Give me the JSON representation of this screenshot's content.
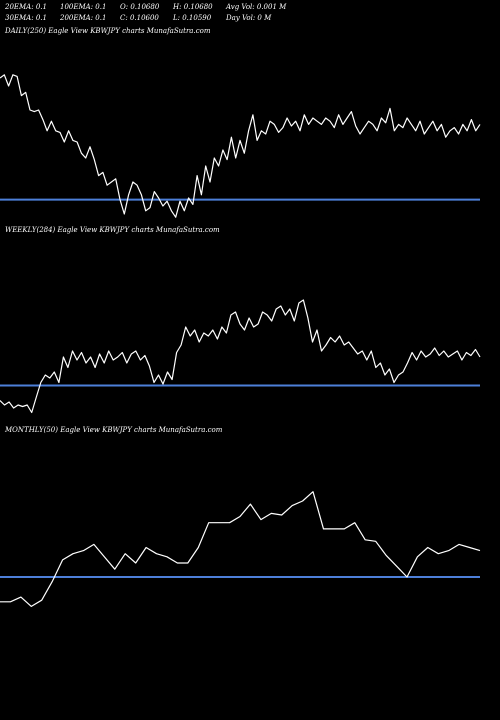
{
  "header": {
    "row1": [
      "20EMA: 0.1",
      "100EMA: 0.1",
      "O: 0.10680",
      "H: 0.10680",
      "Avg Vol: 0.001 M"
    ],
    "row2": [
      "30EMA: 0.1",
      "200EMA: 0.1",
      "C: 0.10600",
      "L: 0.10590",
      "Day Vol: 0  M"
    ]
  },
  "colors": {
    "background": "#000000",
    "line": "#ffffff",
    "support": "#4d7fd9"
  },
  "chart_data": [
    {
      "type": "line",
      "title": "DAILY(250) Eagle  View  KBWJPY charts MunafaSutra.com",
      "support_level": 0.19,
      "ylim": [
        0,
        1
      ],
      "values": [
        0.95,
        0.97,
        0.9,
        0.97,
        0.96,
        0.84,
        0.86,
        0.75,
        0.74,
        0.75,
        0.69,
        0.62,
        0.68,
        0.62,
        0.61,
        0.55,
        0.62,
        0.56,
        0.55,
        0.48,
        0.45,
        0.52,
        0.44,
        0.34,
        0.36,
        0.28,
        0.3,
        0.32,
        0.19,
        0.1,
        0.22,
        0.3,
        0.28,
        0.22,
        0.12,
        0.14,
        0.24,
        0.2,
        0.15,
        0.18,
        0.12,
        0.08,
        0.18,
        0.12,
        0.2,
        0.16,
        0.34,
        0.22,
        0.4,
        0.3,
        0.45,
        0.4,
        0.5,
        0.44,
        0.58,
        0.45,
        0.56,
        0.48,
        0.62,
        0.72,
        0.56,
        0.62,
        0.6,
        0.68,
        0.66,
        0.61,
        0.64,
        0.7,
        0.65,
        0.68,
        0.62,
        0.72,
        0.66,
        0.7,
        0.68,
        0.66,
        0.7,
        0.68,
        0.64,
        0.72,
        0.66,
        0.7,
        0.74,
        0.65,
        0.6,
        0.64,
        0.68,
        0.66,
        0.62,
        0.7,
        0.67,
        0.76,
        0.62,
        0.66,
        0.64,
        0.7,
        0.66,
        0.62,
        0.68,
        0.6,
        0.64,
        0.68,
        0.62,
        0.66,
        0.58,
        0.62,
        0.64,
        0.6,
        0.66,
        0.62,
        0.69,
        0.62,
        0.66
      ]
    },
    {
      "type": "line",
      "title": "WEEKLY(284) Eagle  View  KBWJPY charts MunafaSutra.com",
      "support_level": 0.23,
      "ylim": [
        0,
        1
      ],
      "values": [
        0.13,
        0.1,
        0.12,
        0.08,
        0.1,
        0.09,
        0.1,
        0.05,
        0.15,
        0.25,
        0.3,
        0.28,
        0.32,
        0.25,
        0.42,
        0.35,
        0.46,
        0.4,
        0.45,
        0.38,
        0.42,
        0.35,
        0.44,
        0.38,
        0.46,
        0.4,
        0.42,
        0.45,
        0.38,
        0.44,
        0.46,
        0.4,
        0.43,
        0.36,
        0.25,
        0.3,
        0.24,
        0.32,
        0.27,
        0.45,
        0.5,
        0.62,
        0.56,
        0.6,
        0.52,
        0.58,
        0.56,
        0.6,
        0.54,
        0.62,
        0.58,
        0.7,
        0.72,
        0.64,
        0.6,
        0.68,
        0.62,
        0.64,
        0.72,
        0.7,
        0.66,
        0.74,
        0.76,
        0.7,
        0.74,
        0.66,
        0.78,
        0.8,
        0.68,
        0.52,
        0.6,
        0.46,
        0.5,
        0.55,
        0.52,
        0.56,
        0.5,
        0.52,
        0.48,
        0.44,
        0.46,
        0.4,
        0.46,
        0.35,
        0.38,
        0.3,
        0.34,
        0.25,
        0.3,
        0.32,
        0.38,
        0.45,
        0.4,
        0.46,
        0.42,
        0.44,
        0.48,
        0.43,
        0.46,
        0.42,
        0.44,
        0.46,
        0.4,
        0.45,
        0.43,
        0.47,
        0.42
      ]
    },
    {
      "type": "line",
      "title": "MONTHLY(50) Eagle  View  KBWJPY charts MunafaSutra.com",
      "support_level": 0.31,
      "ylim": [
        0,
        1
      ],
      "values": [
        0.15,
        0.15,
        0.18,
        0.12,
        0.16,
        0.28,
        0.42,
        0.46,
        0.48,
        0.52,
        0.44,
        0.36,
        0.46,
        0.4,
        0.5,
        0.46,
        0.44,
        0.4,
        0.4,
        0.5,
        0.66,
        0.66,
        0.66,
        0.7,
        0.78,
        0.68,
        0.72,
        0.71,
        0.77,
        0.8,
        0.86,
        0.62,
        0.62,
        0.62,
        0.66,
        0.55,
        0.54,
        0.45,
        0.38,
        0.31,
        0.44,
        0.5,
        0.46,
        0.48,
        0.52,
        0.5,
        0.48
      ]
    }
  ]
}
